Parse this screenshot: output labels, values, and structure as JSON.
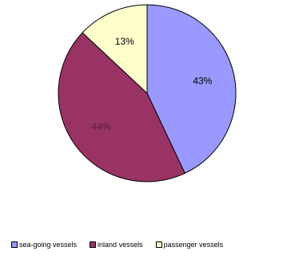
{
  "chart_data": {
    "type": "pie",
    "categories": [
      "sea-going vessels",
      "inland vessels",
      "passenger vessels"
    ],
    "values": [
      43,
      44,
      13
    ],
    "labels": [
      "43%",
      "44%",
      "13%"
    ],
    "colors": [
      "#9999ff",
      "#993366",
      "#ffffcc"
    ],
    "label_colors": [
      "#000000",
      "#5a1a3c",
      "#000000"
    ],
    "legend_position": "bottom"
  }
}
